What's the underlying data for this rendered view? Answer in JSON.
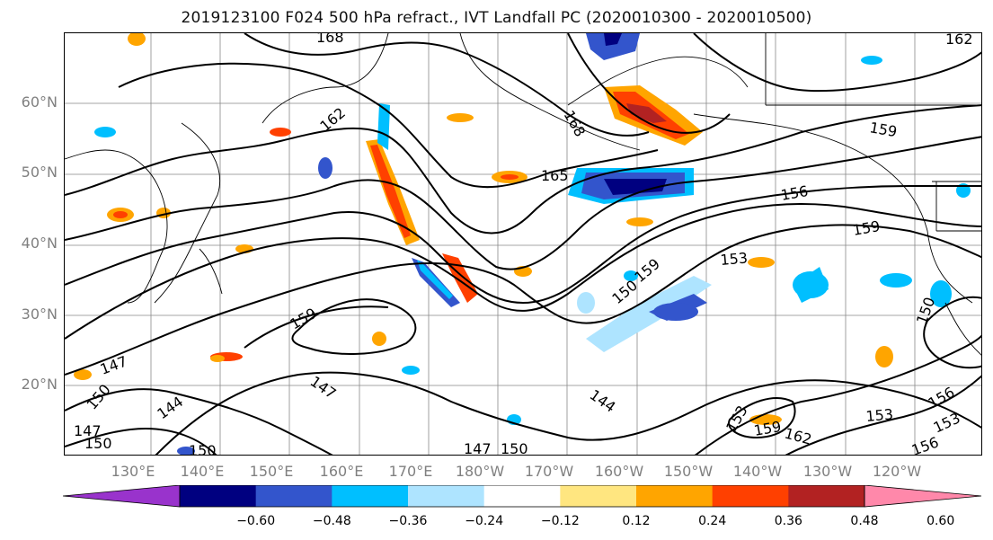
{
  "title": "2019123100 F024 500 hPa refract., IVT Landfall PC (2020010300 - 2020010500)",
  "lat_labels": [
    "60°N",
    "50°N",
    "40°N",
    "30°N",
    "20°N"
  ],
  "lon_labels": [
    "130°E",
    "140°E",
    "150°E",
    "160°E",
    "170°E",
    "180°W",
    "170°W",
    "160°W",
    "150°W",
    "140°W",
    "130°W",
    "120°W"
  ],
  "contour_labels": [
    "168",
    "162",
    "168",
    "165",
    "156",
    "159",
    "162",
    "159",
    "153",
    "159",
    "159",
    "150",
    "147",
    "150",
    "147",
    "144",
    "144",
    "147",
    "150",
    "147",
    "150",
    "153",
    "156",
    "153",
    "159",
    "162",
    "150",
    "156",
    "153",
    "150"
  ],
  "colorbar": {
    "ticks": [
      "−0.60",
      "−0.48",
      "−0.36",
      "−0.24",
      "−0.12",
      "0.12",
      "0.24",
      "0.36",
      "0.48",
      "0.60"
    ],
    "colors": [
      "#9933cc",
      "#000080",
      "#3355cc",
      "#00bfff",
      "#aee4ff",
      "#ffffff",
      "#ffe680",
      "#ffa500",
      "#ff4000",
      "#b22222",
      "#ff88aa"
    ]
  },
  "colors": {
    "coast": "#000000",
    "grid": "#888888",
    "contour": "#000000"
  }
}
